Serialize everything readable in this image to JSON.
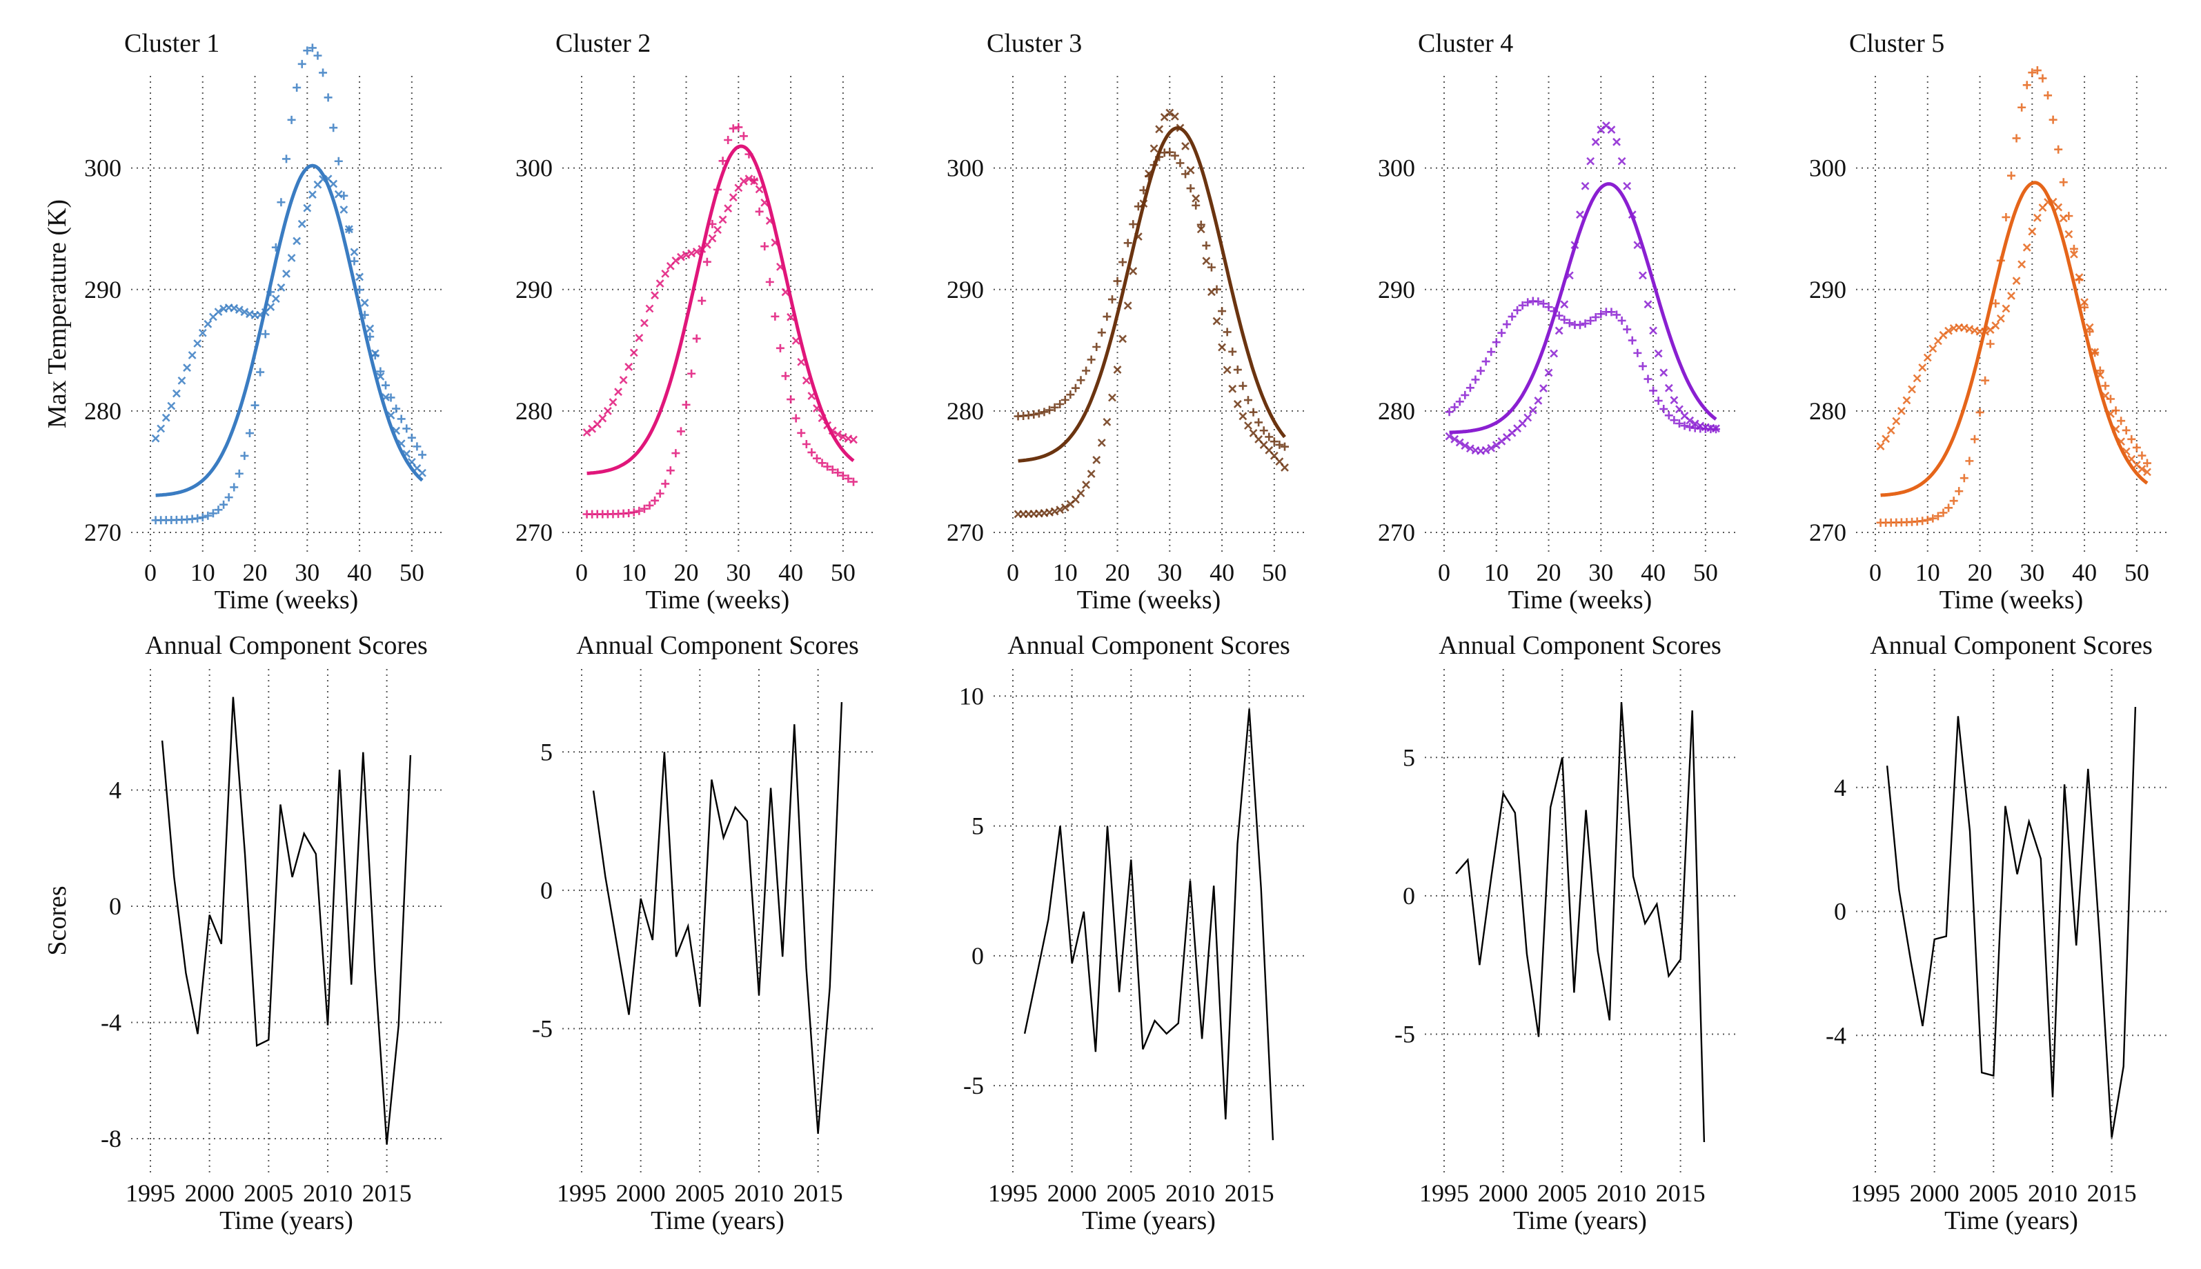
{
  "chart_data": [
    {
      "type": "scatter",
      "title": "Cluster 1",
      "xlabel": "Time (weeks)",
      "ylabel": "Max Temperature (K)",
      "xlim": [
        0,
        52
      ],
      "ylim": [
        270,
        306
      ],
      "xticks": [
        0,
        10,
        20,
        30,
        40,
        50
      ],
      "yticks": [
        270,
        280,
        290,
        300
      ],
      "grid": true,
      "color": "#3a7cc2",
      "fit": {
        "base": 273,
        "amp": 27.2,
        "mu": 31,
        "sigma": 8.5
      },
      "plus": {
        "base": 271,
        "amp": 32,
        "mu": 30,
        "sigma": 6,
        "base2": 11,
        "mu2": 40,
        "sigma2": 10
      },
      "cross": {
        "base": 274,
        "amp": 14,
        "mu": 14,
        "sigma": 8,
        "amp2": 24.5,
        "mu2": 34,
        "sigma2": 7
      },
      "series": [
        {
          "name": "",
          "marker": "plus"
        },
        {
          "name": "",
          "marker": "cross"
        },
        {
          "name": "",
          "marker": "line"
        }
      ]
    },
    {
      "type": "scatter",
      "title": "Cluster 2",
      "xlabel": "Time (weeks)",
      "ylabel": "",
      "xlim": [
        0,
        52
      ],
      "ylim": [
        270,
        306
      ],
      "xticks": [
        0,
        10,
        20,
        30,
        40,
        50
      ],
      "yticks": [
        270,
        280,
        290,
        300
      ],
      "grid": true,
      "color": "#e0167a",
      "fit": {
        "base": 274.8,
        "amp": 27,
        "mu": 30.5,
        "sigma": 8.5
      },
      "plus": {
        "base": 271.5,
        "amp": 31.5,
        "mu": 29.5,
        "sigma": 6,
        "base2": 3.5,
        "mu2": 46,
        "sigma2": 8
      },
      "cross": {
        "base": 277.5,
        "amp": 14,
        "mu": 18,
        "sigma": 7,
        "amp2": 20,
        "mu2": 33,
        "sigma2": 6
      },
      "series": [
        {
          "name": "",
          "marker": "plus"
        },
        {
          "name": "",
          "marker": "cross"
        },
        {
          "name": "",
          "marker": "line"
        }
      ]
    },
    {
      "type": "scatter",
      "title": "Cluster 3",
      "xlabel": "Time (weeks)",
      "ylabel": "",
      "xlim": [
        0,
        52
      ],
      "ylim": [
        270,
        306
      ],
      "xticks": [
        0,
        10,
        20,
        30,
        40,
        50
      ],
      "yticks": [
        270,
        280,
        290,
        300
      ],
      "grid": true,
      "color": "#6b3410",
      "fit": {
        "base": 275.8,
        "amp": 27.5,
        "mu": 31.5,
        "sigma": 9
      },
      "plus": {
        "base": 279.5,
        "amp": 22.5,
        "mu": 30,
        "sigma": 8.5,
        "base2": -3.5,
        "mu2": 48,
        "sigma2": 10
      },
      "cross": {
        "base": 271.5,
        "amp": 33,
        "mu": 30,
        "sigma": 7,
        "base2": 4.5,
        "mu2": 48,
        "sigma2": 6
      },
      "series": [
        {
          "name": "",
          "marker": "plus"
        },
        {
          "name": "",
          "marker": "cross"
        },
        {
          "name": "",
          "marker": "line"
        }
      ]
    },
    {
      "type": "scatter",
      "title": "Cluster 4",
      "xlabel": "Time (weeks)",
      "ylabel": "",
      "xlim": [
        0,
        52
      ],
      "ylim": [
        270,
        306
      ],
      "xticks": [
        0,
        10,
        20,
        30,
        40,
        50
      ],
      "yticks": [
        270,
        280,
        290,
        300
      ],
      "grid": true,
      "color": "#8a1fd1",
      "fit": {
        "base": 278.2,
        "amp": 20.5,
        "mu": 31.5,
        "sigma": 8.5
      },
      "plus": {
        "base": 278.5,
        "amp": 10.5,
        "mu": 17,
        "sigma": 8,
        "amp2": 8,
        "mu2": 33,
        "sigma2": 5
      },
      "cross": {
        "base": 278.5,
        "amp": -1.8,
        "mu": 7,
        "sigma": 4,
        "amp2": 25,
        "mu2": 31,
        "sigma2": 6
      },
      "series": [
        {
          "name": "",
          "marker": "plus"
        },
        {
          "name": "",
          "marker": "cross"
        },
        {
          "name": "",
          "marker": "line"
        }
      ]
    },
    {
      "type": "scatter",
      "title": "Cluster 5",
      "xlabel": "Time (weeks)",
      "ylabel": "",
      "xlim": [
        0,
        52
      ],
      "ylim": [
        270,
        306
      ],
      "xticks": [
        0,
        10,
        20,
        30,
        40,
        50
      ],
      "yticks": [
        270,
        280,
        290,
        300
      ],
      "grid": true,
      "color": "#e5651a",
      "fit": {
        "base": 273,
        "amp": 25.8,
        "mu": 30.5,
        "sigma": 8.5
      },
      "plus": {
        "base": 270.8,
        "amp": 31,
        "mu": 30,
        "sigma": 6,
        "base2": 10,
        "mu2": 40,
        "sigma2": 10
      },
      "cross": {
        "base": 274.5,
        "amp": 12,
        "mu": 15,
        "sigma": 8,
        "amp2": 22,
        "mu2": 34,
        "sigma2": 6.5
      },
      "series": [
        {
          "name": "",
          "marker": "plus"
        },
        {
          "name": "",
          "marker": "cross"
        },
        {
          "name": "",
          "marker": "line"
        }
      ]
    },
    {
      "type": "line",
      "title": "Annual Component Scores",
      "xlabel": "Time (years)",
      "ylabel": "Scores",
      "xlim": [
        1995,
        2018
      ],
      "ylim": [
        -8.5,
        7.5
      ],
      "xticks": [
        1995,
        2000,
        2005,
        2010,
        2015
      ],
      "yticks": [
        -8,
        -4,
        0,
        4
      ],
      "grid": true,
      "x": [
        1996,
        1997,
        1998,
        1999,
        2000,
        2001,
        2002,
        2003,
        2004,
        2005,
        2006,
        2007,
        2008,
        2009,
        2010,
        2011,
        2012,
        2013,
        2014,
        2015,
        2016,
        2017
      ],
      "values": [
        5.7,
        1.0,
        -2.3,
        -4.4,
        -0.3,
        -1.3,
        7.2,
        1.8,
        -4.8,
        -4.6,
        3.5,
        1.0,
        2.5,
        1.8,
        -4.1,
        4.7,
        -2.7,
        5.3,
        -2.2,
        -8.2,
        -4.1,
        5.2
      ]
    },
    {
      "type": "line",
      "title": "Annual Component Scores",
      "xlabel": "Time (years)",
      "ylabel": "",
      "xlim": [
        1995,
        2018
      ],
      "ylim": [
        -9.5,
        7.3
      ],
      "xticks": [
        1995,
        2000,
        2005,
        2010,
        2015
      ],
      "yticks": [
        -5,
        0,
        5
      ],
      "grid": true,
      "x": [
        1996,
        1997,
        1998,
        1999,
        2000,
        2001,
        2002,
        2003,
        2004,
        2005,
        2006,
        2007,
        2008,
        2009,
        2010,
        2011,
        2012,
        2013,
        2014,
        2015,
        2016,
        2017
      ],
      "values": [
        3.6,
        0.5,
        -2.0,
        -4.5,
        -0.3,
        -1.8,
        5.0,
        -2.4,
        -1.3,
        -4.2,
        4.0,
        1.9,
        3.0,
        2.5,
        -3.8,
        3.7,
        -2.4,
        6.0,
        -2.8,
        -8.8,
        -3.5,
        6.8
      ]
    },
    {
      "type": "line",
      "title": "Annual Component Scores",
      "xlabel": "Time (years)",
      "ylabel": "",
      "xlim": [
        1995,
        2018
      ],
      "ylim": [
        -7.6,
        10.3
      ],
      "xticks": [
        1995,
        2000,
        2005,
        2010,
        2015
      ],
      "yticks": [
        -5,
        0,
        5,
        10
      ],
      "grid": true,
      "x": [
        1996,
        1997,
        1998,
        1999,
        2000,
        2001,
        2002,
        2003,
        2004,
        2005,
        2006,
        2007,
        2008,
        2009,
        2010,
        2011,
        2012,
        2013,
        2014,
        2015,
        2016,
        2017
      ],
      "values": [
        -3.0,
        -0.8,
        1.4,
        5.0,
        -0.3,
        1.7,
        -3.7,
        5.0,
        -1.4,
        3.7,
        -3.6,
        -2.5,
        -3.0,
        -2.6,
        2.9,
        -3.2,
        2.7,
        -6.3,
        4.3,
        9.5,
        2.6,
        -7.1
      ]
    },
    {
      "type": "line",
      "title": "Annual Component Scores",
      "xlabel": "Time (years)",
      "ylabel": "",
      "xlim": [
        1995,
        2018
      ],
      "ylim": [
        -9.3,
        7.5
      ],
      "xticks": [
        1995,
        2000,
        2005,
        2010,
        2015
      ],
      "yticks": [
        -5,
        0,
        5
      ],
      "grid": true,
      "x": [
        1996,
        1997,
        1998,
        1999,
        2000,
        2001,
        2002,
        2003,
        2004,
        2005,
        2006,
        2007,
        2008,
        2009,
        2010,
        2011,
        2012,
        2013,
        2014,
        2015,
        2016,
        2017
      ],
      "values": [
        0.8,
        1.3,
        -2.5,
        0.7,
        3.7,
        3.0,
        -2.1,
        -5.1,
        3.2,
        5.0,
        -3.5,
        3.1,
        -2.0,
        -4.5,
        7.0,
        0.7,
        -1.0,
        -0.3,
        -2.9,
        -2.3,
        6.7,
        -8.9
      ]
    },
    {
      "type": "line",
      "title": "Annual Component Scores",
      "xlabel": "Time (years)",
      "ylabel": "",
      "xlim": [
        1995,
        2018
      ],
      "ylim": [
        -7.8,
        7.2
      ],
      "xticks": [
        1995,
        2000,
        2005,
        2010,
        2015
      ],
      "yticks": [
        -4,
        0,
        4
      ],
      "grid": true,
      "x": [
        1996,
        1997,
        1998,
        1999,
        2000,
        2001,
        2002,
        2003,
        2004,
        2005,
        2006,
        2007,
        2008,
        2009,
        2010,
        2011,
        2012,
        2013,
        2014,
        2015,
        2016,
        2017
      ],
      "values": [
        4.7,
        0.7,
        -1.6,
        -3.7,
        -0.9,
        -0.8,
        6.3,
        2.6,
        -5.2,
        -5.3,
        3.4,
        1.2,
        2.9,
        1.7,
        -6.0,
        4.1,
        -1.1,
        4.6,
        -1.0,
        -7.3,
        -5.0,
        6.6
      ]
    }
  ]
}
